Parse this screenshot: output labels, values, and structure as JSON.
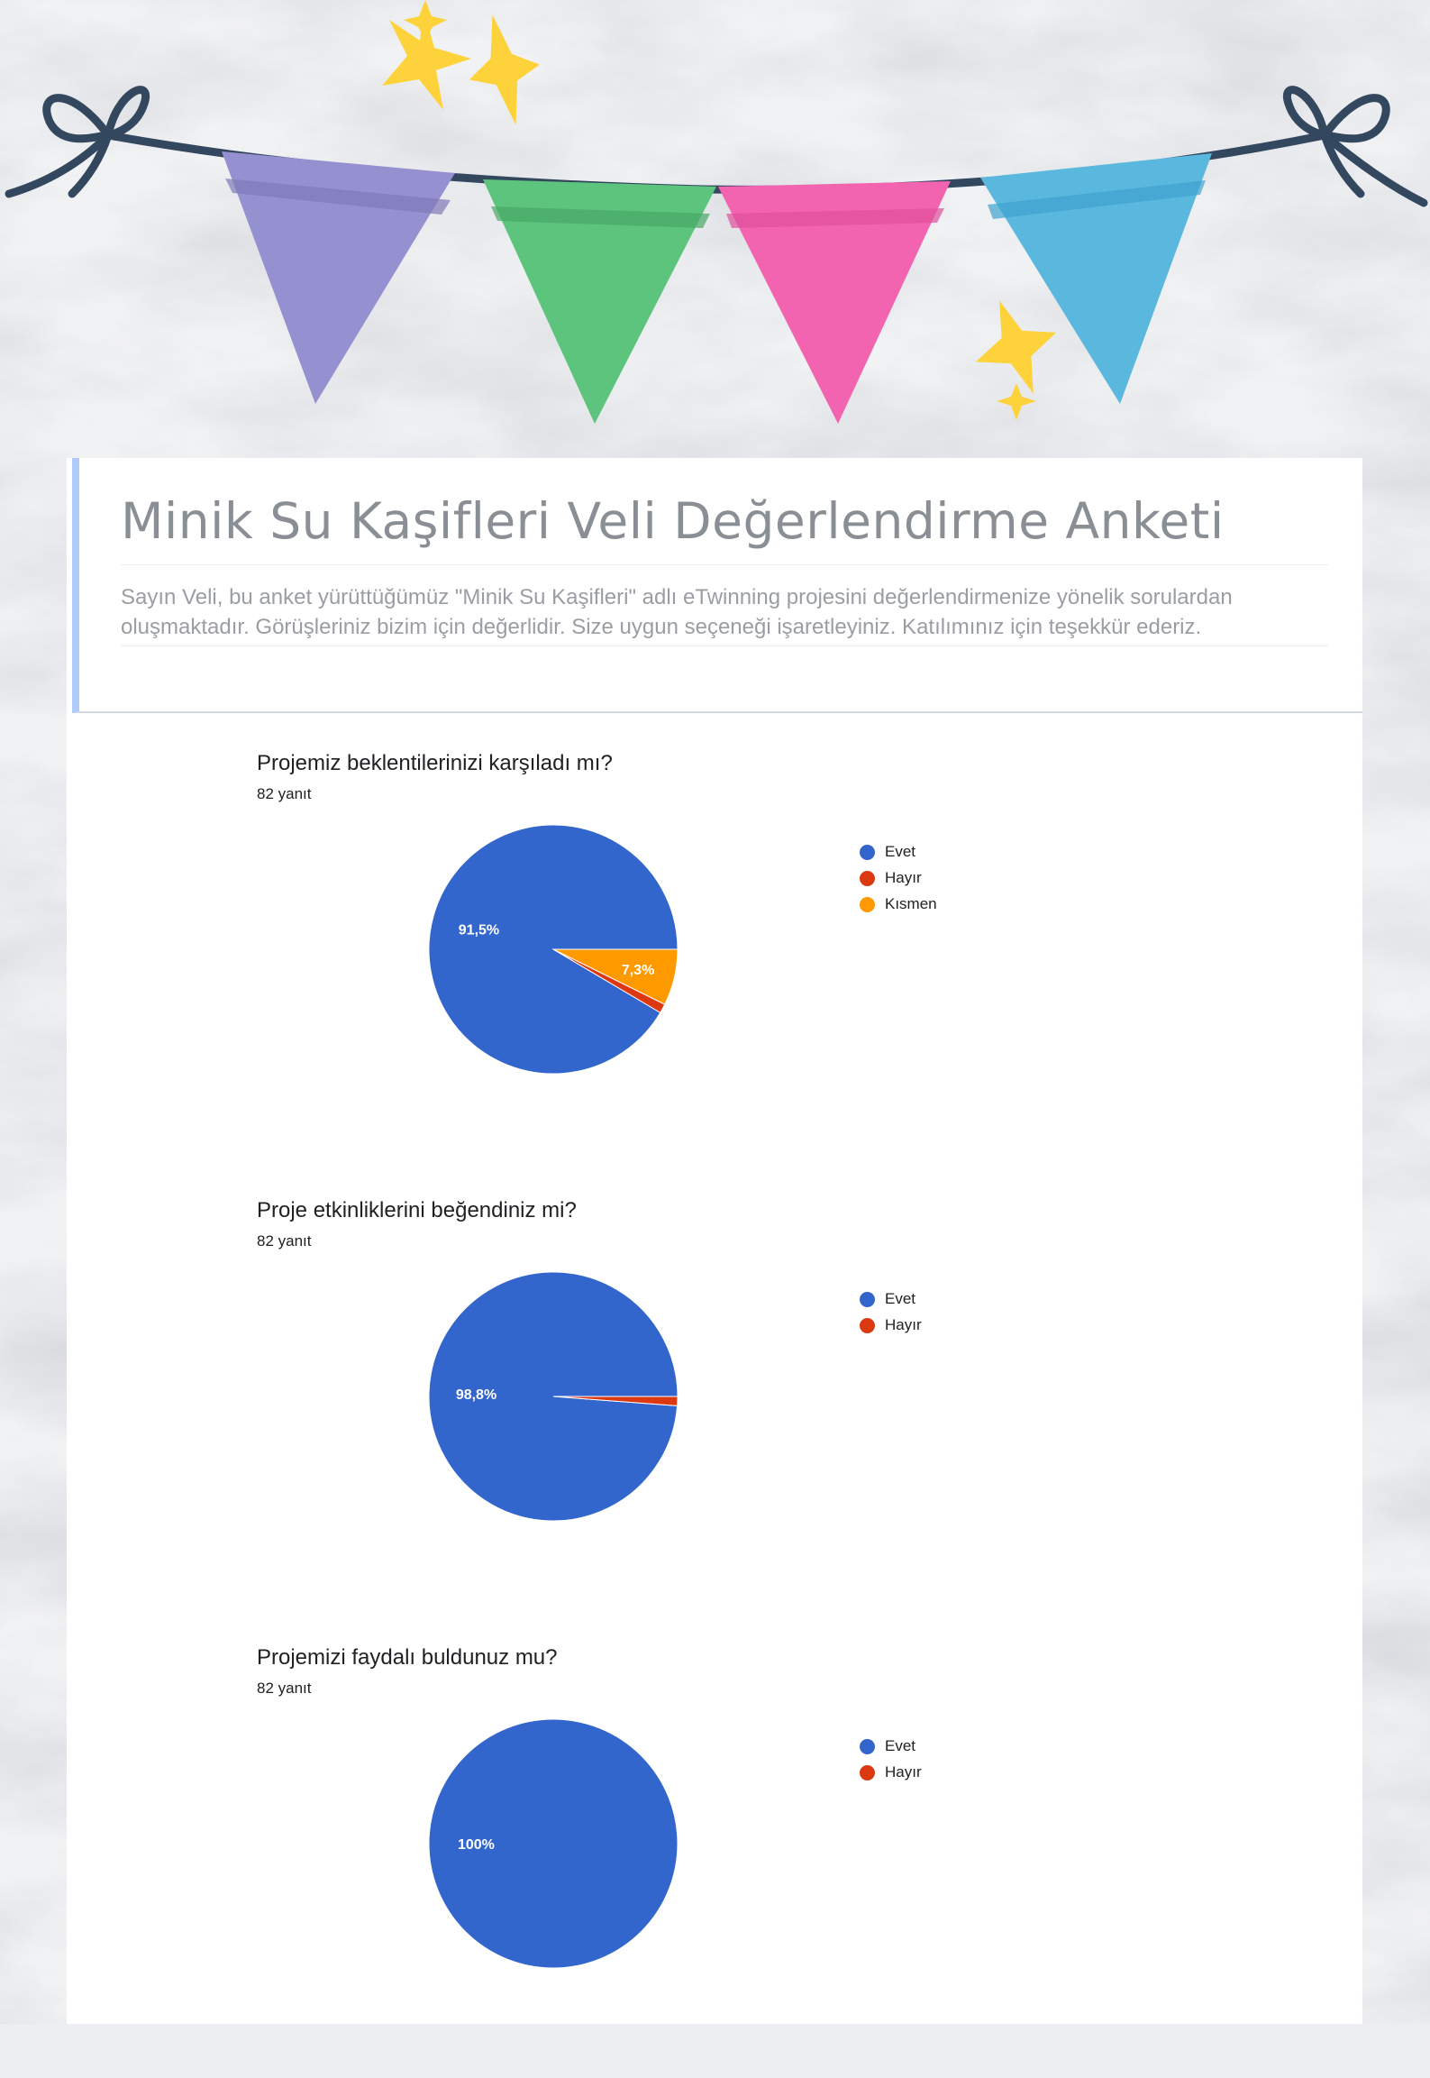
{
  "form": {
    "title": "Minik Su Kaşifleri Veli Değerlendirme Anketi",
    "description": "Sayın Veli, bu anket yürüttüğümüz \"Minik Su Kaşifleri\" adlı eTwinning  projesini değerlendirmenize yönelik sorulardan oluşmaktadır. Görüşleriniz bizim için değerlidir. Size uygun seçeneği işaretleyiniz. Katılımınız için teşekkür ederiz."
  },
  "colors": {
    "evet": "#3366cc",
    "hayir": "#dc3912",
    "kismen": "#ff9900",
    "header_accent": "#aecbfa",
    "flag_purple": "#9590cf",
    "flag_green": "#5cc47c",
    "flag_pink": "#f264b0",
    "flag_blue": "#5ab8de",
    "star": "#fed23a"
  },
  "questions": [
    {
      "title": "Projemiz beklentilerinizi karşıladı mı?",
      "count": "82 yanıt"
    },
    {
      "title": "Proje etkinliklerini beğendiniz mi?",
      "count": "82 yanıt"
    },
    {
      "title": "Projemizi faydalı buldunuz mu?",
      "count": "82 yanıt"
    }
  ],
  "chart_data": [
    {
      "type": "pie",
      "title": "Projemiz beklentilerinizi karşıladı mı?",
      "legend_position": "right",
      "slices": [
        {
          "label": "Evet",
          "value": 91.5,
          "display": "91,5%",
          "color": "#3366cc"
        },
        {
          "label": "Hayır",
          "value": 1.2,
          "display": "",
          "color": "#dc3912"
        },
        {
          "label": "Kısmen",
          "value": 7.3,
          "display": "7,3%",
          "color": "#ff9900"
        }
      ]
    },
    {
      "type": "pie",
      "title": "Proje etkinliklerini beğendiniz mi?",
      "legend_position": "right",
      "slices": [
        {
          "label": "Evet",
          "value": 98.8,
          "display": "98,8%",
          "color": "#3366cc"
        },
        {
          "label": "Hayır",
          "value": 1.2,
          "display": "",
          "color": "#dc3912"
        }
      ]
    },
    {
      "type": "pie",
      "title": "Projemizi faydalı buldunuz mu?",
      "legend_position": "right",
      "slices": [
        {
          "label": "Evet",
          "value": 100,
          "display": "100%",
          "color": "#3366cc"
        },
        {
          "label": "Hayır",
          "value": 0,
          "display": "",
          "color": "#dc3912"
        }
      ]
    }
  ]
}
